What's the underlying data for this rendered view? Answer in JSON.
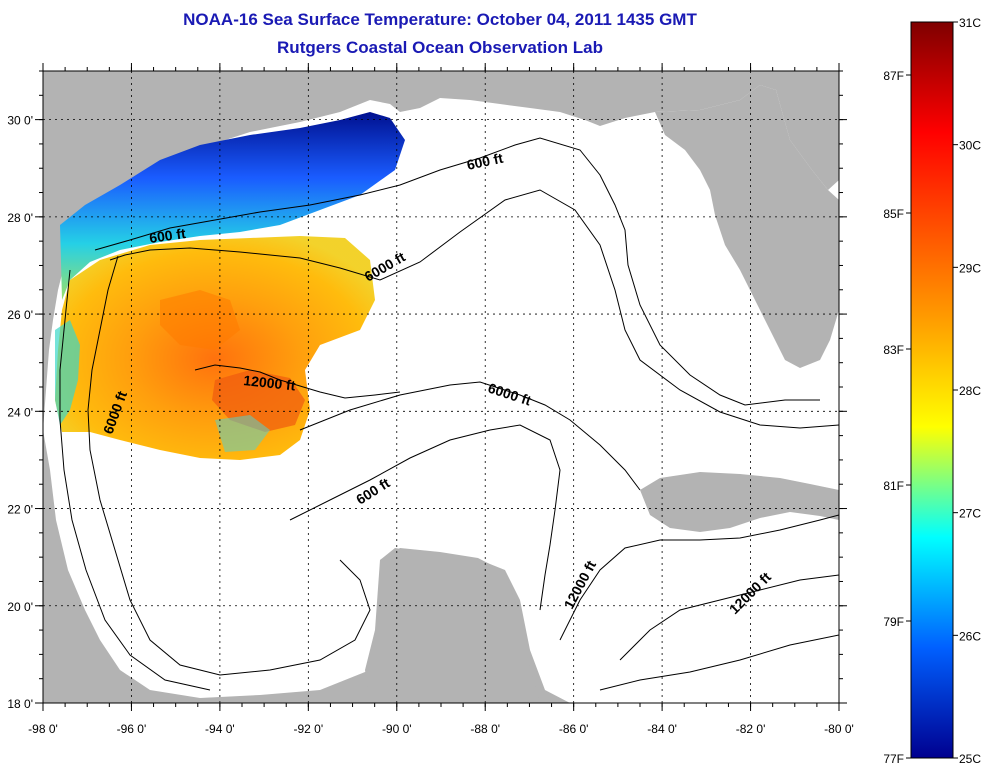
{
  "header": {
    "title": "NOAA-16 Sea Surface Temperature:  October 04, 2011 1435 GMT",
    "subtitle": "Rutgers Coastal Ocean Observation Lab"
  },
  "map": {
    "lon_range": [
      -98,
      -80
    ],
    "lat_range": [
      18,
      31
    ],
    "x_ticks": [
      "-98 0'",
      "-96 0'",
      "-94 0'",
      "-92 0'",
      "-90 0'",
      "-88 0'",
      "-86 0'",
      "-84 0'",
      "-82 0'",
      "-80 0'"
    ],
    "y_ticks": [
      "18 0'",
      "20 0'",
      "22 0'",
      "24 0'",
      "26 0'",
      "28 0'",
      "30 0'"
    ],
    "land_color": "#b3b3b3",
    "ocean_color": "#ffffff",
    "grid": "dotted",
    "contour_labels": [
      "600 ft",
      "6000 ft",
      "12000 ft",
      "6000 ft",
      "6000 ft",
      "600 ft",
      "12000 ft",
      "12000 ft",
      "600 ft"
    ]
  },
  "colorbar": {
    "celsius_labels": [
      "31C",
      "30C",
      "29C",
      "28C",
      "27C",
      "26C",
      "25C"
    ],
    "fahrenheit_labels": [
      "87F",
      "85F",
      "83F",
      "81F",
      "79F",
      "77F"
    ],
    "colors": [
      "#7f0000",
      "#ff0000",
      "#ff9a00",
      "#ffff00",
      "#00ffff",
      "#0060ff",
      "#00008f"
    ]
  }
}
